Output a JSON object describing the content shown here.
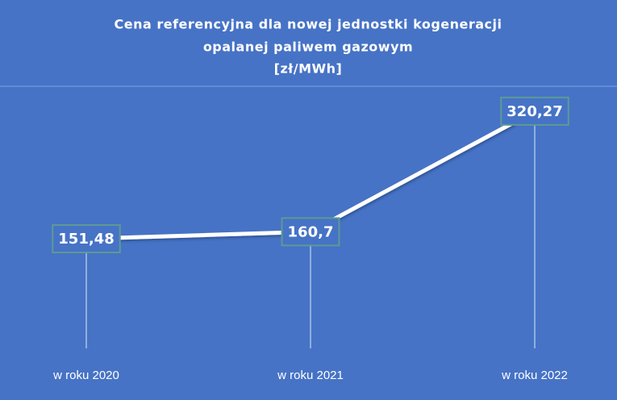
{
  "chart_data": {
    "type": "line",
    "title": [
      "Cena referencyjna dla nowej jednostki kogeneracji",
      "opalanej paliwem gazowym",
      "[zł/MWh]"
    ],
    "categories": [
      "w roku 2020",
      "w roku 2021",
      "w roku 2022"
    ],
    "values": [
      151.48,
      160.7,
      320.27
    ],
    "value_labels": [
      "151,48",
      "160,7",
      "320,27"
    ],
    "color": "#ffffff",
    "ylim": [
      0,
      350
    ]
  }
}
